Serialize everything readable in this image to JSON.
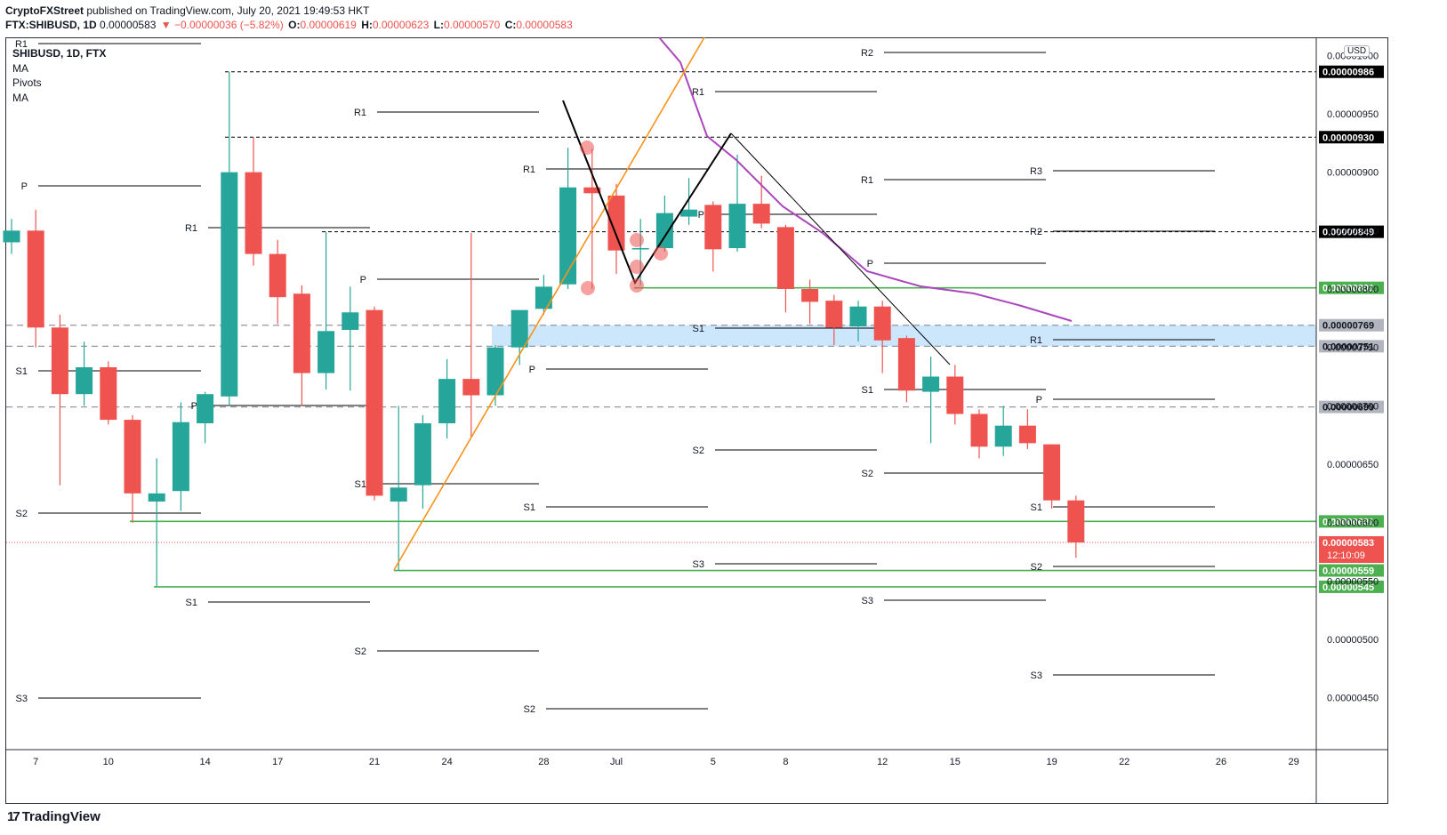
{
  "header": {
    "publisher": "CryptoFXStreet",
    "published_text": "published on TradingView.com, July 20, 2021 19:49:53 HKT",
    "symbol_line": "FTX:SHIBUSD, 1D",
    "last": "0.00000583",
    "change": "▼ −0.00000036 (−5.82%)",
    "o_label": "O:",
    "o_val": "0.00000619",
    "h_label": "H:",
    "h_val": "0.00000623",
    "l_label": "L:",
    "l_val": "0.00000570",
    "c_label": "C:",
    "c_val": "0.00000583"
  },
  "legend": {
    "title": "SHIBUSD, 1D, FTX",
    "items": [
      "MA",
      "Pivots",
      "MA"
    ]
  },
  "currency": "USD",
  "footer": {
    "brand": "TradingView"
  },
  "colors": {
    "up": "#26a69a",
    "down": "#ef5350",
    "ma": "#ab47bc",
    "trend": "#f7931a",
    "support": "#4caf50",
    "zone": "#bbdefb",
    "pattern": "#000000"
  },
  "chart_data": {
    "type": "candlestick",
    "x_ticks": [
      "7",
      "10",
      "14",
      "17",
      "21",
      "24",
      "28",
      "Jul",
      "5",
      "8",
      "12",
      "15",
      "19",
      "22",
      "26",
      "29"
    ],
    "y_ticks": [
      "0.00000450",
      "0.00000500",
      "0.00000550",
      "0.00000600",
      "0.00000650",
      "0.00000700",
      "0.00000750",
      "0.00000800",
      "0.00000850",
      "0.00000900",
      "0.00000950",
      "0.00001000"
    ],
    "ylim": [
      3.88e-06,
      1.02e-05
    ],
    "candles": [
      {
        "date": "2021-06-06",
        "o": 8.4e-06,
        "h": 8.6e-06,
        "l": 8.3e-06,
        "c": 8.5e-06
      },
      {
        "date": "2021-06-07",
        "o": 8.5e-06,
        "h": 8.68e-06,
        "l": 7.5e-06,
        "c": 7.67e-06
      },
      {
        "date": "2021-06-08",
        "o": 7.67e-06,
        "h": 7.78e-06,
        "l": 6.32e-06,
        "c": 7.1e-06
      },
      {
        "date": "2021-06-09",
        "o": 7.1e-06,
        "h": 7.55e-06,
        "l": 7e-06,
        "c": 7.33e-06
      },
      {
        "date": "2021-06-10",
        "o": 7.33e-06,
        "h": 7.38e-06,
        "l": 6.84e-06,
        "c": 6.88e-06
      },
      {
        "date": "2021-06-11",
        "o": 6.88e-06,
        "h": 6.92e-06,
        "l": 6e-06,
        "c": 6.25e-06
      },
      {
        "date": "2021-06-12",
        "o": 6.18e-06,
        "h": 6.55e-06,
        "l": 5.45e-06,
        "c": 6.25e-06
      },
      {
        "date": "2021-06-13",
        "o": 6.27e-06,
        "h": 7.03e-06,
        "l": 6.1e-06,
        "c": 6.86e-06
      },
      {
        "date": "2021-06-14",
        "o": 6.85e-06,
        "h": 7.12e-06,
        "l": 6.68e-06,
        "c": 7.1e-06
      },
      {
        "date": "2021-06-15",
        "o": 7.08e-06,
        "h": 9.86e-06,
        "l": 7e-06,
        "c": 9e-06
      },
      {
        "date": "2021-06-16",
        "o": 9e-06,
        "h": 9.3e-06,
        "l": 8.2e-06,
        "c": 8.3e-06
      },
      {
        "date": "2021-06-17",
        "o": 8.3e-06,
        "h": 8.42e-06,
        "l": 7.7e-06,
        "c": 7.93e-06
      },
      {
        "date": "2021-06-18",
        "o": 7.96e-06,
        "h": 8.03e-06,
        "l": 7e-06,
        "c": 7.28e-06
      },
      {
        "date": "2021-06-19",
        "o": 7.28e-06,
        "h": 8.49e-06,
        "l": 7.14e-06,
        "c": 7.64e-06
      },
      {
        "date": "2021-06-20",
        "o": 7.65e-06,
        "h": 8.02e-06,
        "l": 7.13e-06,
        "c": 7.8e-06
      },
      {
        "date": "2021-06-21",
        "o": 7.82e-06,
        "h": 7.85e-06,
        "l": 6.19e-06,
        "c": 6.23e-06
      },
      {
        "date": "2021-06-22",
        "o": 6.18e-06,
        "h": 7e-06,
        "l": 5.59e-06,
        "c": 6.3e-06
      },
      {
        "date": "2021-06-23",
        "o": 6.32e-06,
        "h": 6.92e-06,
        "l": 6.12e-06,
        "c": 6.85e-06
      },
      {
        "date": "2021-06-24",
        "o": 6.85e-06,
        "h": 7.4e-06,
        "l": 6.72e-06,
        "c": 7.23e-06
      },
      {
        "date": "2021-06-25",
        "o": 7.23e-06,
        "h": 8.48e-06,
        "l": 6.73e-06,
        "c": 7.09e-06
      },
      {
        "date": "2021-06-26",
        "o": 7.09e-06,
        "h": 7.52e-06,
        "l": 7e-06,
        "c": 7.5e-06
      },
      {
        "date": "2021-06-27",
        "o": 7.5e-06,
        "h": 7.8e-06,
        "l": 7.35e-06,
        "c": 7.82e-06
      },
      {
        "date": "2021-06-28",
        "o": 7.83e-06,
        "h": 8.12e-06,
        "l": 7.78e-06,
        "c": 8.02e-06
      },
      {
        "date": "2021-06-29",
        "o": 8.04e-06,
        "h": 9.21e-06,
        "l": 8e-06,
        "c": 8.87e-06
      },
      {
        "date": "2021-06-30",
        "o": 8.87e-06,
        "h": 9.2e-06,
        "l": 8e-06,
        "c": 8.82e-06
      },
      {
        "date": "2021-07-01",
        "o": 8.8e-06,
        "h": 8.9e-06,
        "l": 8.13e-06,
        "c": 8.33e-06
      },
      {
        "date": "2021-07-02",
        "o": 8.35e-06,
        "h": 8.6e-06,
        "l": 8.03e-06,
        "c": 8.35e-06
      },
      {
        "date": "2021-07-03",
        "o": 8.35e-06,
        "h": 8.8e-06,
        "l": 8.32e-06,
        "c": 8.65e-06
      },
      {
        "date": "2021-07-04",
        "o": 8.62e-06,
        "h": 8.95e-06,
        "l": 8.55e-06,
        "c": 8.68e-06
      },
      {
        "date": "2021-07-05",
        "o": 8.72e-06,
        "h": 8.75e-06,
        "l": 8.15e-06,
        "c": 8.34e-06
      },
      {
        "date": "2021-07-06",
        "o": 8.35e-06,
        "h": 9.15e-06,
        "l": 8.32e-06,
        "c": 8.73e-06
      },
      {
        "date": "2021-07-07",
        "o": 8.73e-06,
        "h": 8.97e-06,
        "l": 8.52e-06,
        "c": 8.56e-06
      },
      {
        "date": "2021-07-08",
        "o": 8.53e-06,
        "h": 8.55e-06,
        "l": 7.8e-06,
        "c": 8e-06
      },
      {
        "date": "2021-07-09",
        "o": 8e-06,
        "h": 8.08e-06,
        "l": 7.7e-06,
        "c": 7.89e-06
      },
      {
        "date": "2021-07-10",
        "o": 7.9e-06,
        "h": 7.95e-06,
        "l": 7.52e-06,
        "c": 7.67e-06
      },
      {
        "date": "2021-07-11",
        "o": 7.68e-06,
        "h": 7.9e-06,
        "l": 7.55e-06,
        "c": 7.85e-06
      },
      {
        "date": "2021-07-12",
        "o": 7.85e-06,
        "h": 7.9e-06,
        "l": 7.28e-06,
        "c": 7.56e-06
      },
      {
        "date": "2021-07-13",
        "o": 7.58e-06,
        "h": 7.6e-06,
        "l": 7.03e-06,
        "c": 7.13e-06
      },
      {
        "date": "2021-07-14",
        "o": 7.12e-06,
        "h": 7.42e-06,
        "l": 6.68e-06,
        "c": 7.25e-06
      },
      {
        "date": "2021-07-15",
        "o": 7.25e-06,
        "h": 7.35e-06,
        "l": 6.84e-06,
        "c": 6.93e-06
      },
      {
        "date": "2021-07-16",
        "o": 6.93e-06,
        "h": 6.97e-06,
        "l": 6.55e-06,
        "c": 6.65e-06
      },
      {
        "date": "2021-07-17",
        "o": 6.65e-06,
        "h": 7e-06,
        "l": 6.57e-06,
        "c": 6.83e-06
      },
      {
        "date": "2021-07-18",
        "o": 6.83e-06,
        "h": 6.97e-06,
        "l": 6.63e-06,
        "c": 6.68e-06
      },
      {
        "date": "2021-07-19",
        "o": 6.67e-06,
        "h": 6.67e-06,
        "l": 6.12e-06,
        "c": 6.19e-06
      },
      {
        "date": "2021-07-20",
        "o": 6.19e-06,
        "h": 6.23e-06,
        "l": 5.7e-06,
        "c": 5.83e-06
      }
    ],
    "horizontal_levels": [
      {
        "price": 9.86e-06,
        "style": "dashed-black",
        "label": "0.00000986"
      },
      {
        "price": 9.3e-06,
        "style": "dashed-black",
        "label": "0.00000930"
      },
      {
        "price": 8.49e-06,
        "style": "dashed-black",
        "label": "0.00000849"
      },
      {
        "price": 8.01e-06,
        "style": "solid-green",
        "label": "0.00000801"
      },
      {
        "price": 7.69e-06,
        "style": "dashed-gray",
        "label": "0.00000769"
      },
      {
        "price": 7.51e-06,
        "style": "dashed-gray",
        "label": "0.00000751"
      },
      {
        "price": 6.99e-06,
        "style": "dashed-gray",
        "label": "0.00000699"
      },
      {
        "price": 6.01e-06,
        "style": "solid-green",
        "label": "0.00000601"
      },
      {
        "price": 5.59e-06,
        "style": "solid-green",
        "label": "0.00000559"
      },
      {
        "price": 5.45e-06,
        "style": "solid-green",
        "label": "0.00000545"
      }
    ],
    "last_price": {
      "label": "0.00000583",
      "countdown": "12:10:09"
    },
    "pivot_labels": [
      "R1",
      "P",
      "S1",
      "S2",
      "S3",
      "R2",
      "R3"
    ],
    "zone": {
      "from": 7.51e-06,
      "to": 7.69e-06
    }
  }
}
